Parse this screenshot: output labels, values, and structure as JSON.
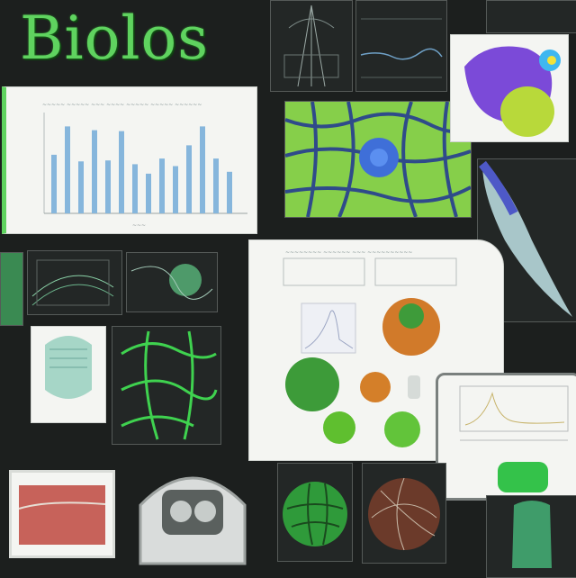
{
  "header": {
    "title": "Biolos"
  },
  "palette": {
    "accent": "#5fd35f",
    "background": "#1c1f1e",
    "paper": "#f4f5f2",
    "bar": "#86b6dc"
  },
  "bar_panel": {
    "relative_bar_heights": [
      0.62,
      0.92,
      0.55,
      0.88,
      0.56,
      0.87,
      0.52,
      0.42,
      0.58,
      0.5,
      0.72,
      0.92,
      0.58,
      0.44
    ]
  },
  "icons": [
    "leaf-cell-network-image",
    "purple-blob-image",
    "green-globe-image",
    "helmet-device-image",
    "brown-sphere-image",
    "green-sphere-image"
  ]
}
